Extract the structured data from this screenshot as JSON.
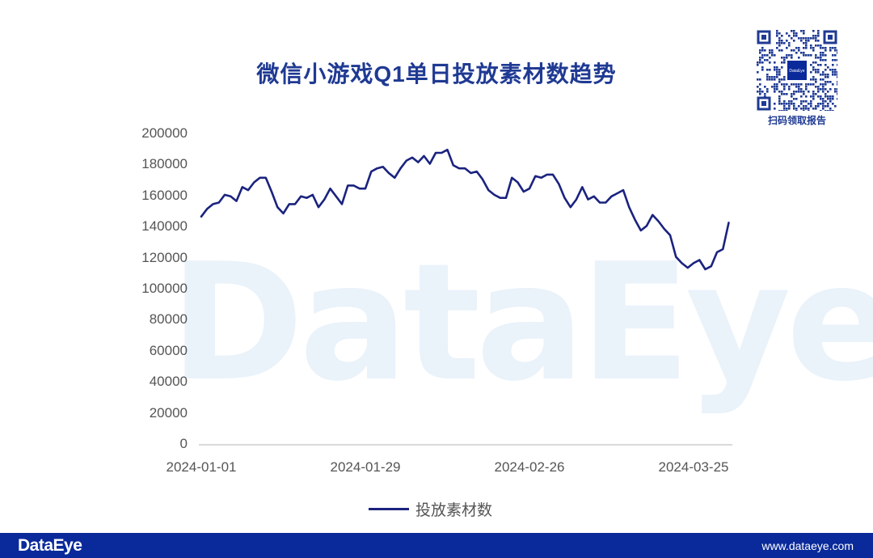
{
  "title": "微信小游戏Q1单日投放素材数趋势",
  "qr": {
    "caption": "扫码领取报告",
    "center_label": "DataEye"
  },
  "watermark": "DataEye",
  "legend": {
    "label": "投放素材数",
    "color": "#1a237e"
  },
  "footer": {
    "logo": "DataEye",
    "url": "www.dataeye.com",
    "background": "#0a2a9b"
  },
  "axes": {
    "y_ticks": [
      "200000",
      "180000",
      "160000",
      "140000",
      "120000",
      "100000",
      "80000",
      "60000",
      "40000",
      "20000",
      "0"
    ],
    "x_ticks": [
      "2024-01-01",
      "2024-01-29",
      "2024-02-26",
      "2024-03-25"
    ]
  },
  "chart_data": {
    "type": "line",
    "title": "微信小游戏Q1单日投放素材数趋势",
    "xlabel": "",
    "ylabel": "",
    "ylim": [
      0,
      200000
    ],
    "grid": false,
    "legend_position": "bottom",
    "x_start": "2024-01-01",
    "x_end": "2024-03-31",
    "x_tick_labels": [
      "2024-01-01",
      "2024-01-29",
      "2024-02-26",
      "2024-03-25"
    ],
    "y_tick_labels": [
      0,
      20000,
      40000,
      60000,
      80000,
      100000,
      120000,
      140000,
      160000,
      180000,
      200000
    ],
    "series": [
      {
        "name": "投放素材数",
        "color": "#1a237e",
        "values": [
          147000,
          152000,
          155000,
          156000,
          161000,
          160000,
          157000,
          166000,
          164000,
          169000,
          172000,
          172000,
          163000,
          153000,
          149000,
          155000,
          155000,
          160000,
          159000,
          161000,
          153000,
          158000,
          165000,
          160000,
          155000,
          167000,
          167000,
          165000,
          165000,
          176000,
          178000,
          179000,
          175000,
          172000,
          178000,
          183000,
          185000,
          182000,
          186000,
          181000,
          188000,
          188000,
          190000,
          180000,
          178000,
          178000,
          175000,
          176000,
          171000,
          164000,
          161000,
          159000,
          159000,
          172000,
          169000,
          163000,
          165000,
          173000,
          172000,
          174000,
          174000,
          168000,
          159000,
          153000,
          158000,
          166000,
          158000,
          160000,
          156000,
          156000,
          160000,
          162000,
          164000,
          153000,
          145000,
          138000,
          141000,
          148000,
          144000,
          139000,
          135000,
          121000,
          117000,
          114000,
          117000,
          119000,
          113000,
          115000,
          124000,
          126000,
          143000
        ]
      }
    ]
  }
}
